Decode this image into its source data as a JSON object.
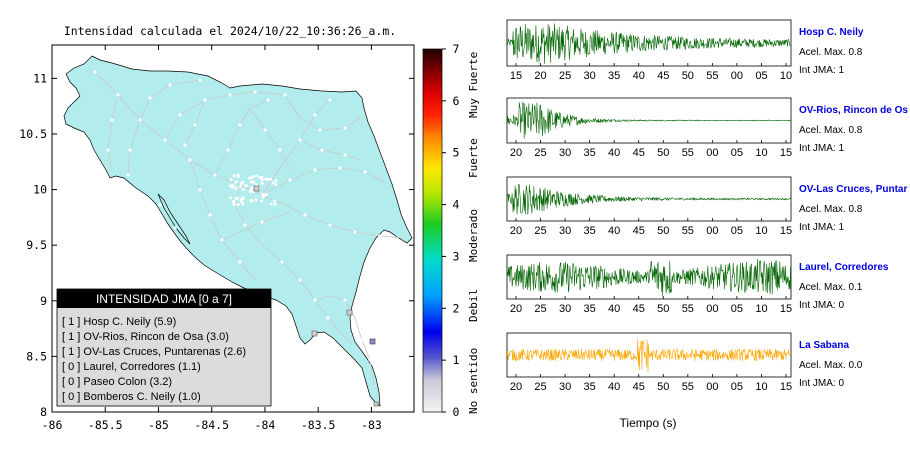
{
  "map": {
    "title": "Intensidad calculada el 2024/10/22_10:36:26_a.m.",
    "x_ticks": [
      "-86",
      "-85.5",
      "-85",
      "-84.5",
      "-84",
      "-83.5",
      "-83"
    ],
    "y_ticks": [
      "11",
      "10.5",
      "10",
      "9.5",
      "9",
      "8.5",
      "8"
    ],
    "xlim": [
      -86,
      -82.6
    ],
    "ylim": [
      8,
      11.3
    ],
    "land_color": "#b3ecec"
  },
  "legend": {
    "title": "INTENSIDAD JMA [0 a 7]",
    "items": [
      "[ 1 ]  Hosp C. Neily (5.9)",
      "[ 1 ]  OV-Rios, Rincon de Osa (3.0)",
      "[ 1 ]  OV-Las Cruces, Puntarenas (2.6)",
      "[ 0 ]  Laurel, Corredores (1.1)",
      "[ 0 ]  Paseo Colon (3.2)",
      "[ 0 ]  Bomberos C. Neily (1.0)"
    ]
  },
  "colorbar": {
    "ticks": [
      "7",
      "6",
      "5",
      "4",
      "3",
      "2",
      "1",
      "0"
    ],
    "range": [
      0,
      7
    ],
    "labels": [
      "Muy Fuerte",
      "Fuerte",
      "Moderado",
      "Debil",
      "No sentido"
    ]
  },
  "waveforms": {
    "xlabel": "Tiempo (s)",
    "panels": [
      {
        "name": "Hosp C. Neily",
        "acel": "Acel. Max. 0.8",
        "jma": "Int JMA: 1",
        "color": "#006400",
        "ticks": [
          "15",
          "20",
          "25",
          "30",
          "35",
          "40",
          "45",
          "50",
          "55",
          "00",
          "05",
          "10"
        ]
      },
      {
        "name": "OV-Rios, Rincon de Os",
        "acel": "Acel. Max. 0.8",
        "jma": "Int JMA: 1",
        "color": "#006400",
        "ticks": [
          "20",
          "25",
          "30",
          "35",
          "40",
          "45",
          "50",
          "55",
          "00",
          "05",
          "10",
          "15"
        ]
      },
      {
        "name": "OV-Las Cruces, Puntar",
        "acel": "Acel. Max. 0.8",
        "jma": "Int JMA: 1",
        "color": "#006400",
        "ticks": [
          "20",
          "25",
          "30",
          "35",
          "40",
          "45",
          "50",
          "55",
          "00",
          "05",
          "10",
          "15"
        ]
      },
      {
        "name": "Laurel, Corredores",
        "acel": "Acel. Max. 0.1",
        "jma": "Int JMA: 0",
        "color": "#006400",
        "ticks": [
          "20",
          "25",
          "30",
          "35",
          "40",
          "45",
          "50",
          "55",
          "00",
          "05",
          "10",
          "15"
        ]
      },
      {
        "name": "La Sabana",
        "acel": "Acel. Max. 0.0",
        "jma": "Int JMA: 0",
        "color": "#ffa500",
        "ticks": [
          "20",
          "25",
          "30",
          "35",
          "40",
          "45",
          "50",
          "55",
          "00",
          "05",
          "10",
          "15"
        ]
      }
    ]
  },
  "chart_data": [
    {
      "type": "scatter",
      "title": "Intensidad calculada el 2024/10/22_10:36:26_a.m.",
      "xlabel": "",
      "ylabel": "",
      "xlim": [
        -86,
        -82.6
      ],
      "ylim": [
        8,
        11.3
      ],
      "legend_title": "INTENSIDAD JMA [0 a 7]",
      "stations": [
        {
          "name": "Hosp C. Neily",
          "intensity": 1,
          "value": 5.9
        },
        {
          "name": "OV-Rios, Rincon de Osa",
          "intensity": 1,
          "value": 3.0
        },
        {
          "name": "OV-Las Cruces, Puntarenas",
          "intensity": 1,
          "value": 2.6
        },
        {
          "name": "Laurel, Corredores",
          "intensity": 0,
          "value": 1.1
        },
        {
          "name": "Paseo Colon",
          "intensity": 0,
          "value": 3.2
        },
        {
          "name": "Bomberos C. Neily",
          "intensity": 0,
          "value": 1.0
        }
      ],
      "colorbar": {
        "min": 0,
        "max": 7
      }
    },
    {
      "type": "line",
      "xlabel": "Tiempo (s)",
      "series": [
        {
          "name": "Hosp C. Neily",
          "acel_max": 0.8,
          "int_jma": 1
        },
        {
          "name": "OV-Rios, Rincon de Os",
          "acel_max": 0.8,
          "int_jma": 1
        },
        {
          "name": "OV-Las Cruces, Puntar",
          "acel_max": 0.8,
          "int_jma": 1
        },
        {
          "name": "Laurel, Corredores",
          "acel_max": 0.1,
          "int_jma": 0
        },
        {
          "name": "La Sabana",
          "acel_max": 0.0,
          "int_jma": 0
        }
      ]
    }
  ]
}
